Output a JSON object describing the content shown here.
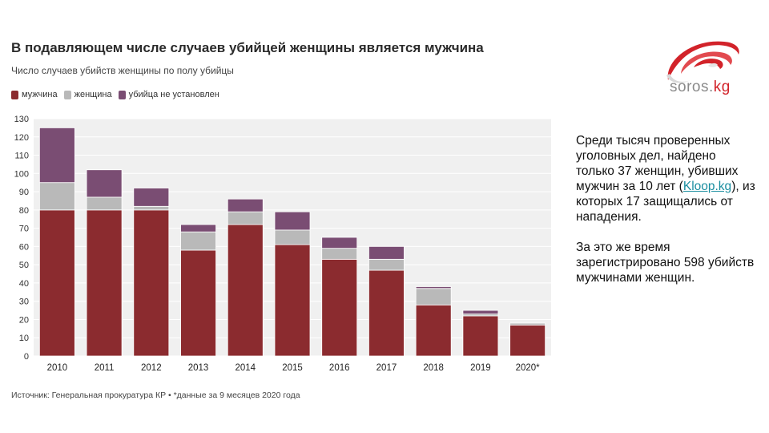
{
  "chart_data": {
    "type": "bar",
    "stacked": true,
    "title": "В подавляющем числе случаев убийцей женщины является мужчина",
    "subtitle": "Число случаев убийств женщины по полу убийцы",
    "categories": [
      "2010",
      "2011",
      "2012",
      "2013",
      "2014",
      "2015",
      "2016",
      "2017",
      "2018",
      "2019",
      "2020*"
    ],
    "series": [
      {
        "name": "мужчина",
        "color": "#8b2b2f",
        "values": [
          80,
          80,
          80,
          58,
          72,
          61,
          53,
          47,
          28,
          22,
          17
        ]
      },
      {
        "name": "женщина",
        "color": "#b9b9b9",
        "values": [
          15,
          7,
          2,
          10,
          7,
          8,
          6,
          6,
          9,
          1,
          1
        ]
      },
      {
        "name": "убийца не установлен",
        "color": "#7a4d73",
        "values": [
          30,
          15,
          10,
          4,
          7,
          10,
          6,
          7,
          1,
          2,
          0
        ]
      }
    ],
    "yticks": [
      0,
      10,
      20,
      30,
      40,
      50,
      60,
      70,
      80,
      90,
      100,
      110,
      120,
      130
    ],
    "ylim": [
      0,
      130
    ],
    "grid": true,
    "legend_position": "top-left"
  },
  "source": "Источник: Генеральная прокуратура КР • *данные за 9 месяцев 2020 года",
  "logo": {
    "text_main": "soros.",
    "text_accent": "kg",
    "accent_color": "#d2232a"
  },
  "side_text": {
    "p1_before_link": "Среди тысяч проверенных уголовных дел, найдено только 37 женщин, убивших мужчин за 10 лет (",
    "link_text": "Kloop.kg",
    "p1_after_link": "), из которых 17 защищались от нападения.",
    "p2": "За это же время зарегистрировано 598 убийств мужчинами женщин."
  }
}
